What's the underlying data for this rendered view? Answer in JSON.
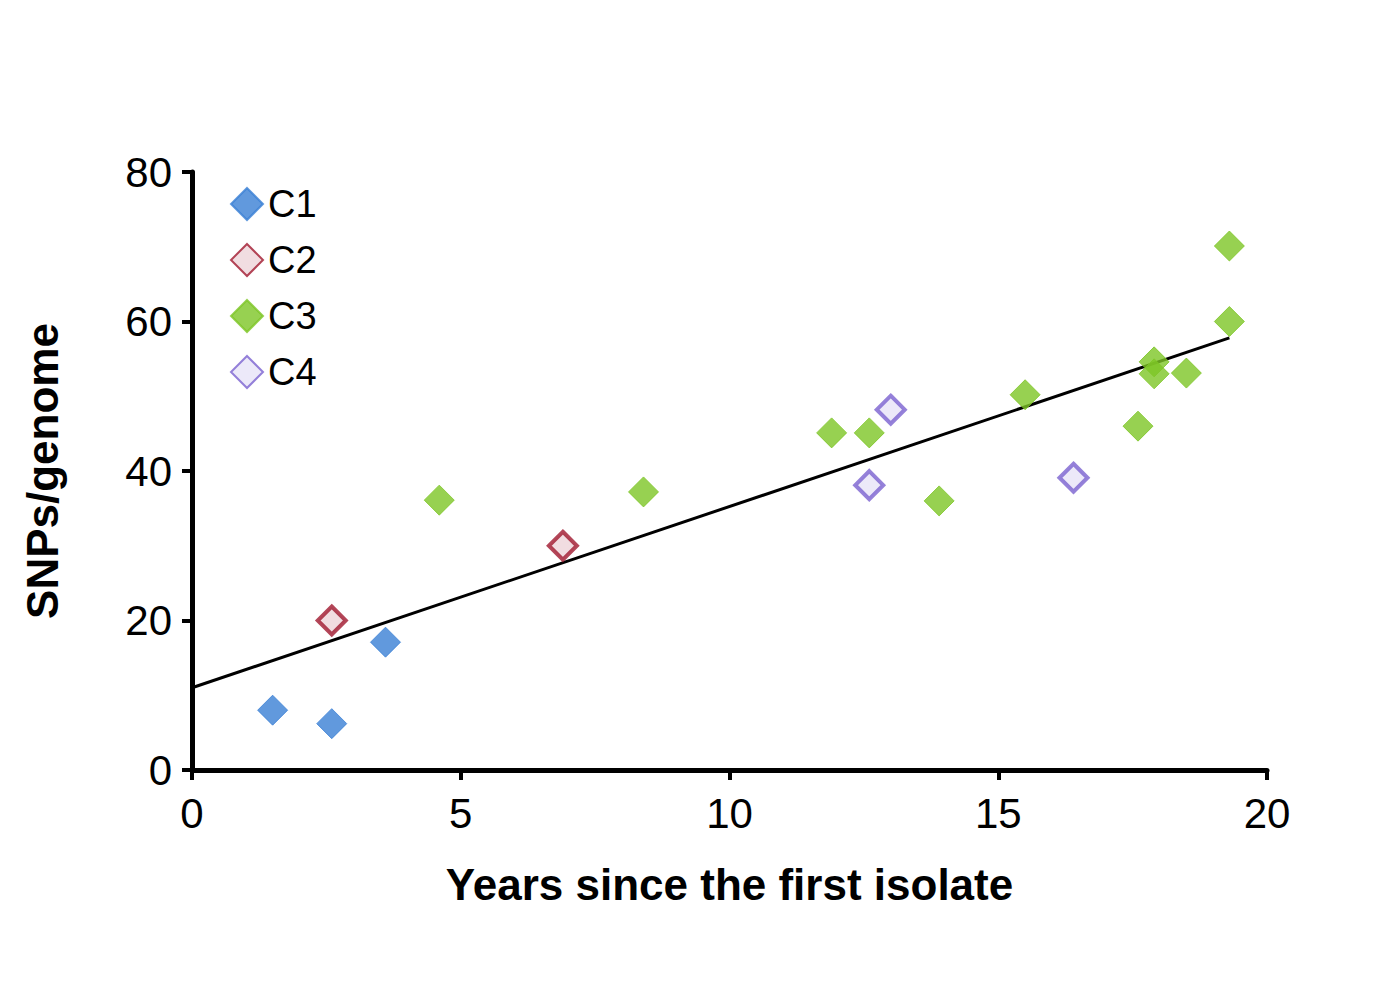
{
  "chart_data": {
    "type": "scatter",
    "x_label": "Years since the first isolate",
    "y_label": "SNPs/genome",
    "xlim": [
      0,
      20
    ],
    "xticks": [
      0,
      5,
      10,
      15,
      20
    ],
    "ylim": [
      0,
      80
    ],
    "yticks": [
      0,
      20,
      40,
      60,
      80
    ],
    "grid": false,
    "legend": "upper left",
    "series": [
      {
        "name": "C1",
        "color": "#3a7fd5",
        "marker": "diamond",
        "x": [
          1.5,
          2.6,
          3.6
        ],
        "values": [
          8,
          6.2,
          17.1
        ]
      },
      {
        "name": "C2",
        "color": "#a0182e",
        "marker": "diamond-open",
        "x": [
          2.6,
          6.9
        ],
        "values": [
          20,
          30
        ]
      },
      {
        "name": "C3",
        "color": "#7dc626",
        "marker": "diamond",
        "x": [
          4.6,
          8.4,
          11.9,
          12.6,
          13.9,
          15.5,
          17.6,
          17.9,
          17.9,
          18.5,
          19.3,
          19.3
        ],
        "values": [
          36.1,
          37.2,
          45.1,
          45.1,
          36,
          50.2,
          46,
          54.6,
          53,
          53.1,
          60,
          70.1
        ]
      },
      {
        "name": "C4",
        "color": "#7b61d0",
        "marker": "diamond-open",
        "x": [
          12.6,
          13.0,
          16.4
        ],
        "values": [
          38.1,
          48.2,
          39.1
        ]
      }
    ],
    "trend_line": {
      "color": "#000000",
      "line_style": "solid",
      "x": [
        0,
        19.3
      ],
      "values": [
        11,
        57.8
      ]
    }
  }
}
